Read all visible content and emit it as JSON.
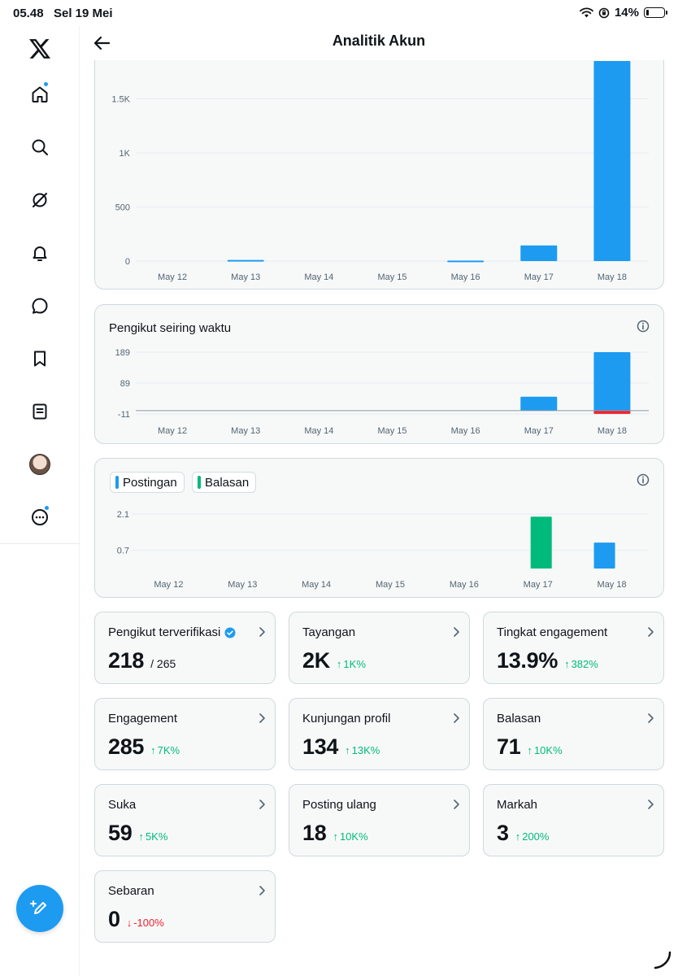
{
  "status": {
    "time": "05.48",
    "date": "Sel 19 Mei",
    "battery": "14%"
  },
  "header": {
    "title": "Analitik Akun"
  },
  "sidebar": {
    "items": [
      {
        "icon": "x-logo-icon"
      },
      {
        "icon": "home-icon",
        "notification_dot": true
      },
      {
        "icon": "search-icon"
      },
      {
        "icon": "grok-icon"
      },
      {
        "icon": "bell-icon"
      },
      {
        "icon": "chat-icon"
      },
      {
        "icon": "bookmark-icon"
      },
      {
        "icon": "list-icon"
      },
      {
        "icon": "avatar"
      },
      {
        "icon": "more-icon",
        "notification_dot": true
      }
    ],
    "compose_icon": "compose-icon"
  },
  "colors": {
    "blue": "#1d9bf0",
    "green": "#00ba7c",
    "red": "#f4212e"
  },
  "chart_data": [
    {
      "type": "bar",
      "categories": [
        "May 12",
        "May 13",
        "May 14",
        "May 15",
        "May 16",
        "May 17",
        "May 18"
      ],
      "ytick_labels": [
        "0",
        "500",
        "1K",
        "1.5K"
      ],
      "yticks": [
        0,
        500,
        1000,
        1500
      ],
      "ylim": [
        0,
        1850
      ],
      "series": [
        {
          "values": [
            0,
            10,
            0,
            0,
            5,
            145,
            1850
          ],
          "color": "#1d9bf0"
        }
      ]
    },
    {
      "type": "bar",
      "title": "Pengikut seiring waktu",
      "categories": [
        "May 12",
        "May 13",
        "May 14",
        "May 15",
        "May 16",
        "May 17",
        "May 18"
      ],
      "ytick_labels": [
        "-11",
        "89",
        "189"
      ],
      "yticks": [
        -11,
        89,
        189
      ],
      "ylim": [
        -11,
        189
      ],
      "series": [
        {
          "values": [
            0,
            0,
            0,
            0,
            0,
            45,
            189
          ],
          "color": "#1d9bf0"
        },
        {
          "values": [
            0,
            0,
            0,
            0,
            0,
            0,
            -11
          ],
          "color": "#f4212e"
        }
      ]
    },
    {
      "type": "bar",
      "legend": [
        "Postingan",
        "Balasan"
      ],
      "categories": [
        "May 12",
        "May 13",
        "May 14",
        "May 15",
        "May 16",
        "May 17",
        "May 18"
      ],
      "ytick_labels": [
        "0.7",
        "2.1"
      ],
      "yticks": [
        0.7,
        2.1
      ],
      "ylim": [
        0,
        2.1
      ],
      "series": [
        {
          "name": "Postingan",
          "values": [
            0,
            0,
            0,
            0,
            0,
            0,
            1
          ],
          "color": "#1d9bf0"
        },
        {
          "name": "Balasan",
          "values": [
            0,
            0,
            0,
            0,
            0,
            2,
            0
          ],
          "color": "#00ba7c"
        }
      ]
    }
  ],
  "metrics": [
    {
      "label": "Pengikut terverifikasi",
      "value": "218",
      "sub": "/ 265",
      "verified": true
    },
    {
      "label": "Tayangan",
      "value": "2K",
      "change": "1K%",
      "dir": "up"
    },
    {
      "label": "Tingkat engagement",
      "value": "13.9%",
      "change": "382%",
      "dir": "up"
    },
    {
      "label": "Engagement",
      "value": "285",
      "change": "7K%",
      "dir": "up"
    },
    {
      "label": "Kunjungan profil",
      "value": "134",
      "change": "13K%",
      "dir": "up"
    },
    {
      "label": "Balasan",
      "value": "71",
      "change": "10K%",
      "dir": "up"
    },
    {
      "label": "Suka",
      "value": "59",
      "change": "5K%",
      "dir": "up"
    },
    {
      "label": "Posting ulang",
      "value": "18",
      "change": "10K%",
      "dir": "up"
    },
    {
      "label": "Markah",
      "value": "3",
      "change": "200%",
      "dir": "up"
    },
    {
      "label": "Sebaran",
      "value": "0",
      "change": "-100%",
      "dir": "down"
    }
  ]
}
